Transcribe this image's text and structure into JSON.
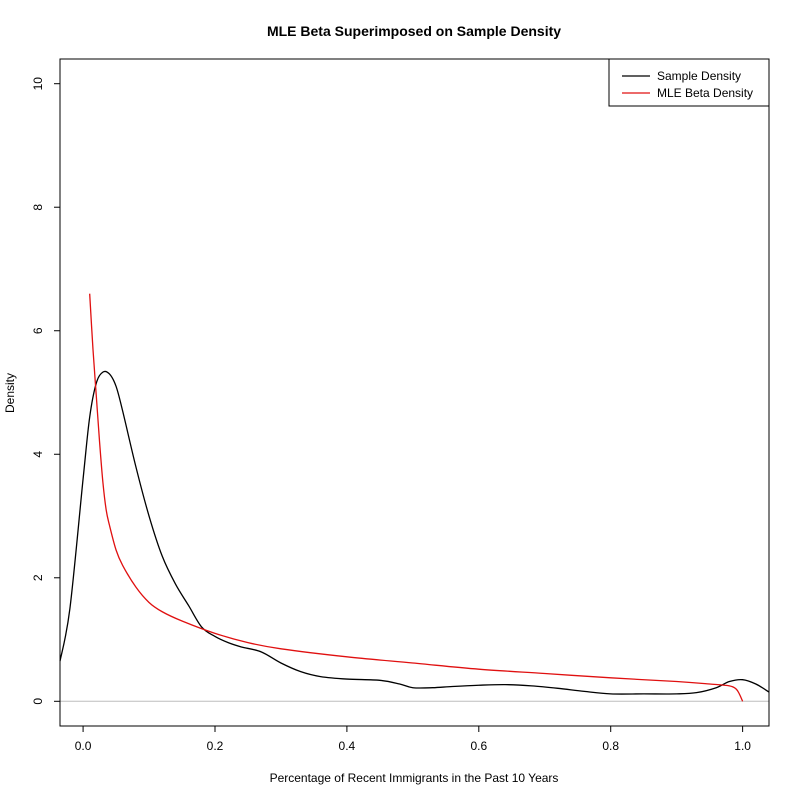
{
  "chart_data": {
    "type": "line",
    "title": "MLE Beta Superimposed on Sample Density",
    "xlabel": "Percentage of Recent Immigrants in the Past 10 Years",
    "ylabel": "Density",
    "xlim": [
      -0.035,
      1.04
    ],
    "ylim": [
      -0.4,
      10.4
    ],
    "xticks": [
      0.0,
      0.2,
      0.4,
      0.6,
      0.8,
      1.0
    ],
    "xtick_labels": [
      "0.0",
      "0.2",
      "0.4",
      "0.6",
      "0.8",
      "1.0"
    ],
    "yticks": [
      0,
      2,
      4,
      6,
      8,
      10
    ],
    "ytick_labels": [
      "0",
      "2",
      "4",
      "6",
      "8",
      "10"
    ],
    "grid": false,
    "legend_position": "top-right",
    "baseline": 0,
    "series": [
      {
        "name": "Sample Density",
        "color": "#000000",
        "x": [
          -0.035,
          -0.02,
          0.0,
          0.01,
          0.02,
          0.03,
          0.04,
          0.05,
          0.06,
          0.08,
          0.1,
          0.12,
          0.14,
          0.16,
          0.18,
          0.2,
          0.22,
          0.24,
          0.27,
          0.3,
          0.33,
          0.36,
          0.4,
          0.45,
          0.48,
          0.5,
          0.53,
          0.56,
          0.6,
          0.64,
          0.68,
          0.72,
          0.76,
          0.8,
          0.85,
          0.9,
          0.93,
          0.96,
          0.98,
          1.0,
          1.02,
          1.04
        ],
        "y": [
          0.65,
          1.5,
          3.6,
          4.6,
          5.15,
          5.33,
          5.3,
          5.1,
          4.7,
          3.8,
          3.0,
          2.35,
          1.9,
          1.55,
          1.2,
          1.05,
          0.95,
          0.88,
          0.8,
          0.62,
          0.48,
          0.4,
          0.36,
          0.34,
          0.28,
          0.22,
          0.22,
          0.24,
          0.26,
          0.27,
          0.25,
          0.21,
          0.16,
          0.12,
          0.12,
          0.12,
          0.14,
          0.22,
          0.32,
          0.35,
          0.28,
          0.15
        ]
      },
      {
        "name": "MLE Beta Density",
        "color": "#e01010",
        "x": [
          0.01,
          0.015,
          0.02,
          0.025,
          0.03,
          0.035,
          0.04,
          0.05,
          0.06,
          0.08,
          0.1,
          0.12,
          0.15,
          0.2,
          0.25,
          0.3,
          0.4,
          0.5,
          0.6,
          0.7,
          0.8,
          0.9,
          0.95,
          0.98,
          0.99,
          0.995,
          1.0
        ],
        "y": [
          6.6,
          5.7,
          4.95,
          4.2,
          3.55,
          3.1,
          2.85,
          2.45,
          2.2,
          1.85,
          1.6,
          1.45,
          1.3,
          1.1,
          0.95,
          0.85,
          0.72,
          0.62,
          0.52,
          0.45,
          0.38,
          0.32,
          0.28,
          0.25,
          0.2,
          0.12,
          0.0
        ]
      }
    ]
  }
}
